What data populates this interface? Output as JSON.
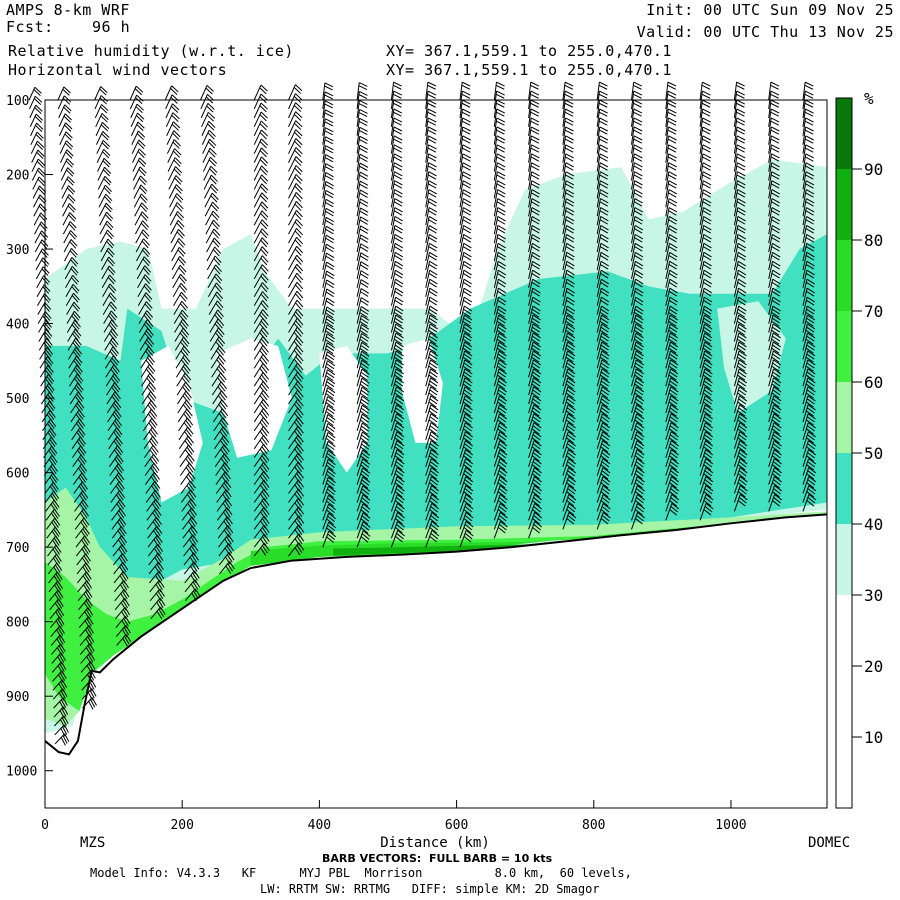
{
  "header": {
    "model": "AMPS 8-km WRF",
    "fcst_label": "Fcst:",
    "fcst_value": "96 h",
    "init": "Init: 00 UTC Sun 09 Nov 25",
    "valid": "Valid: 00 UTC Thu 13 Nov 25",
    "field1": "Relative humidity (w.r.t. ice)",
    "field2": "Horizontal wind vectors",
    "xy1": "XY= 367.1,559.1 to 255.0,470.1",
    "xy2": "XY= 367.1,559.1 to 255.0,470.1"
  },
  "footer": {
    "barb_note": "BARB VECTORS:  FULL BARB = 10 kts",
    "model_info": "Model Info: V4.3.3   KF      MYJ PBL  Morrison          8.0 km,  60 levels,",
    "physics": "LW: RRTM SW: RRTMG   DIFF: simple KM: 2D Smagor"
  },
  "colors": {
    "c30_40": "#c8f6e6",
    "c40_50": "#40e0c0",
    "c50_60": "#a6f5a6",
    "c60_70": "#40f040",
    "c70_80": "#28dc28",
    "c80_90": "#10b010",
    "c90_100": "#0a780a",
    "c20_30": "#ffffff",
    "c10_20": "#ffffff",
    "c0_10": "#ffffff"
  },
  "chart_data": {
    "type": "heatmap",
    "xlabel": "Distance (km)",
    "ylabel": "",
    "xlim": [
      0,
      1140
    ],
    "ylim": [
      1050,
      100
    ],
    "x_ticks": [
      0,
      200,
      400,
      600,
      800,
      1000
    ],
    "y_ticks": [
      100,
      200,
      300,
      400,
      500,
      600,
      700,
      800,
      900,
      1000
    ],
    "x_endpoints": {
      "left": "MZS",
      "right": "DOMEC"
    },
    "colorbar": {
      "unit": "%",
      "ticks": [
        10,
        20,
        30,
        40,
        50,
        60,
        70,
        80,
        90
      ],
      "bands": [
        0,
        10,
        20,
        30,
        40,
        50,
        60,
        70,
        80,
        90,
        100
      ]
    },
    "terrain_pressure": [
      [
        0,
        960
      ],
      [
        20,
        975
      ],
      [
        35,
        978
      ],
      [
        48,
        960
      ],
      [
        58,
        910
      ],
      [
        68,
        866
      ],
      [
        80,
        868
      ],
      [
        100,
        850
      ],
      [
        140,
        820
      ],
      [
        180,
        795
      ],
      [
        220,
        770
      ],
      [
        260,
        745
      ],
      [
        300,
        728
      ],
      [
        360,
        718
      ],
      [
        440,
        713
      ],
      [
        520,
        710
      ],
      [
        600,
        706
      ],
      [
        680,
        700
      ],
      [
        760,
        692
      ],
      [
        840,
        684
      ],
      [
        920,
        677
      ],
      [
        1000,
        668
      ],
      [
        1080,
        660
      ],
      [
        1140,
        656
      ]
    ],
    "rh_regions": [
      {
        "band": "30-40",
        "rows": [
          [
            100,
            400,
            1140
          ],
          [
            380,
            500,
            840
          ],
          [
            430,
            1140,
            1140
          ]
        ]
      },
      {
        "band": "40-50",
        "rows": [
          [
            340,
            420,
            1140
          ],
          [
            530,
            620,
            820
          ]
        ]
      },
      {
        "band": "50-60",
        "rows": [
          [
            40,
            80,
            320
          ]
        ]
      },
      {
        "band": "60-70",
        "rows": [
          [
            10,
            70,
            280
          ]
        ]
      },
      {
        "band": "70-80",
        "rows": [
          [
            500,
            900,
            700
          ]
        ]
      },
      {
        "band": "80-90",
        "rows": [
          [
            420,
            620,
            720
          ]
        ]
      }
    ],
    "barb_columns_km": [
      15,
      55,
      105,
      155,
      205,
      255,
      305,
      355,
      405,
      455,
      505,
      555,
      605,
      655,
      705,
      755,
      805,
      855,
      905,
      955,
      1005,
      1055,
      1105
    ]
  }
}
